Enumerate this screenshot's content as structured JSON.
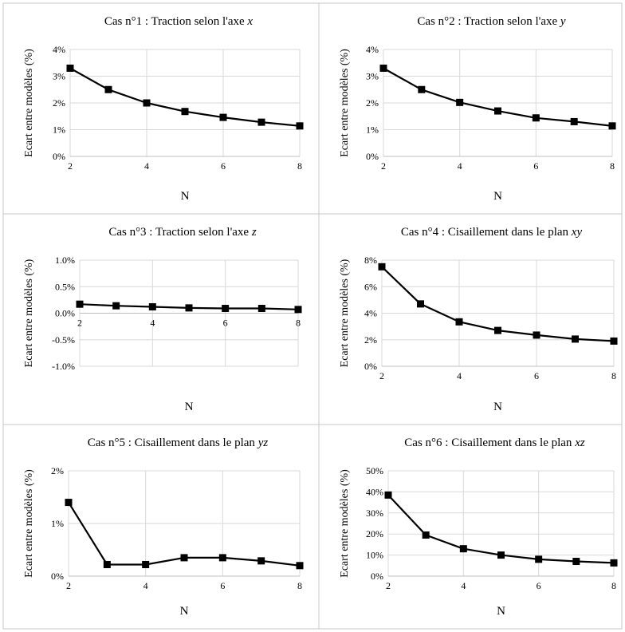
{
  "chart_data": [
    {
      "type": "line",
      "title": "Cas n°1 : Traction selon l'axe ",
      "title_axis": "x",
      "xlabel": "N",
      "ylabel": "Ecart entre modèles (%)",
      "x": [
        2,
        3,
        4,
        5,
        6,
        7,
        8
      ],
      "values": [
        3.3,
        2.5,
        2.0,
        1.68,
        1.46,
        1.28,
        1.14
      ],
      "xlim": [
        2,
        8
      ],
      "ylim": [
        0,
        4
      ],
      "xticks": [
        "2",
        "4",
        "6",
        "8"
      ],
      "yticks": [
        "0%",
        "1%",
        "2%",
        "3%",
        "4%"
      ],
      "grid": true
    },
    {
      "type": "line",
      "title": "Cas n°2 : Traction selon l'axe ",
      "title_axis": "y",
      "xlabel": "N",
      "ylabel": "Ecart entre modèles (%)",
      "x": [
        2,
        3,
        4,
        5,
        6,
        7,
        8
      ],
      "values": [
        3.3,
        2.5,
        2.02,
        1.7,
        1.44,
        1.3,
        1.14
      ],
      "xlim": [
        2,
        8
      ],
      "ylim": [
        0,
        4
      ],
      "xticks": [
        "2",
        "4",
        "6",
        "8"
      ],
      "yticks": [
        "0%",
        "1%",
        "2%",
        "3%",
        "4%"
      ],
      "grid": true
    },
    {
      "type": "line",
      "title": "Cas n°3 : Traction selon l'axe ",
      "title_axis": "z",
      "xlabel": "N",
      "ylabel": "Ecart entre modèles (%)",
      "x": [
        2,
        3,
        4,
        5,
        6,
        7,
        8
      ],
      "values": [
        0.17,
        0.14,
        0.12,
        0.1,
        0.09,
        0.09,
        0.07
      ],
      "xlim": [
        2,
        8
      ],
      "ylim": [
        -1,
        1
      ],
      "xticks": [
        "2",
        "4",
        "6",
        "8"
      ],
      "yticks": [
        "-1.0%",
        "-0.5%",
        "0.0%",
        "0.5%",
        "1.0%"
      ],
      "grid": true
    },
    {
      "type": "line",
      "title": "Cas n°4 : Cisaillement dans le plan ",
      "title_axis": "xy",
      "xlabel": "N",
      "ylabel": "Ecart entre modèles (%)",
      "x": [
        2,
        3,
        4,
        5,
        6,
        7,
        8
      ],
      "values": [
        7.5,
        4.7,
        3.35,
        2.7,
        2.35,
        2.05,
        1.9
      ],
      "xlim": [
        2,
        8
      ],
      "ylim": [
        0,
        8
      ],
      "xticks": [
        "2",
        "4",
        "6",
        "8"
      ],
      "yticks": [
        "0%",
        "2%",
        "4%",
        "6%",
        "8%"
      ],
      "grid": true
    },
    {
      "type": "line",
      "title": "Cas n°5 : Cisaillement dans le plan ",
      "title_axis": "yz",
      "xlabel": "N",
      "ylabel": "Ecart entre modèles (%)",
      "x": [
        2,
        3,
        4,
        5,
        6,
        7,
        8
      ],
      "values": [
        1.4,
        0.22,
        0.22,
        0.35,
        0.35,
        0.29,
        0.2
      ],
      "xlim": [
        2,
        8
      ],
      "ylim": [
        0,
        2
      ],
      "xticks": [
        "2",
        "4",
        "6",
        "8"
      ],
      "yticks": [
        "0%",
        "1%",
        "2%"
      ],
      "grid": true
    },
    {
      "type": "line",
      "title": "Cas n°6 : Cisaillement dans le plan ",
      "title_axis": "xz",
      "xlabel": "N",
      "ylabel": "Ecart entre modèles (%)",
      "x": [
        2,
        3,
        4,
        5,
        6,
        7,
        8
      ],
      "values": [
        38.5,
        19.5,
        13,
        10,
        8,
        7,
        6.3
      ],
      "xlim": [
        2,
        8
      ],
      "ylim": [
        0,
        50
      ],
      "xticks": [
        "2",
        "4",
        "6",
        "8"
      ],
      "yticks": [
        "0%",
        "10%",
        "20%",
        "30%",
        "40%",
        "50%"
      ],
      "grid": true
    }
  ],
  "colors": {
    "line": "#000000",
    "marker": "#000000",
    "grid": "#d9d9d9",
    "axis": "#bfbfbf",
    "border": "#c8c8c8"
  }
}
